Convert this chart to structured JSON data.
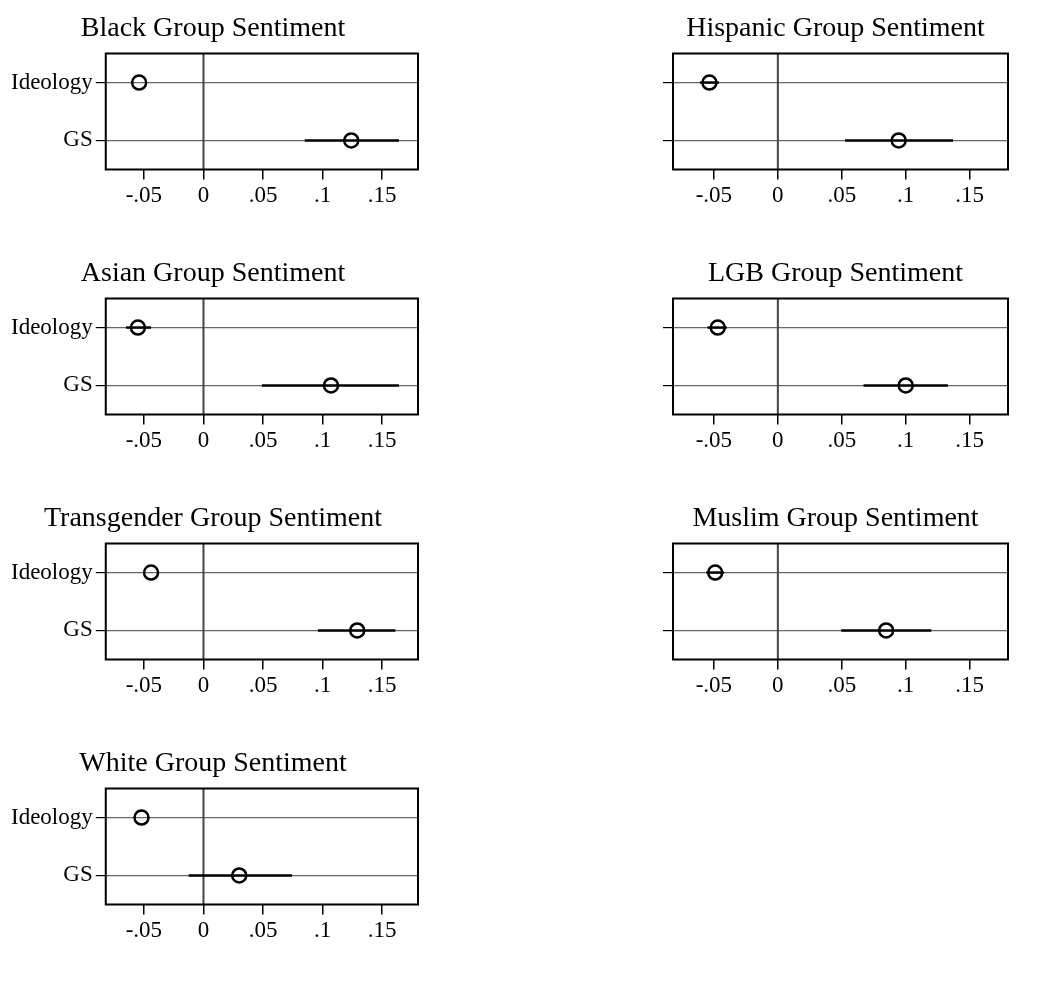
{
  "chart_data": [
    {
      "type": "scatter",
      "title": "Black Group Sentiment",
      "orientation": "horizontal",
      "categories": [
        "Ideology",
        "GS"
      ],
      "values": [
        -0.054,
        0.124
      ],
      "errors": [
        null,
        [
          0.085,
          0.164
        ]
      ],
      "color": "#000000",
      "marker": "circle",
      "xlim": [
        -0.082,
        0.18
      ],
      "xticks": [
        {
          "value": -0.05,
          "label": "-.05"
        },
        {
          "value": 0,
          "label": "0"
        },
        {
          "value": 0.05,
          "label": ".05"
        },
        {
          "value": 0.1,
          "label": ".1"
        },
        {
          "value": 0.15,
          "label": ".15"
        }
      ],
      "grid": "y",
      "ref_lines": [
        {
          "axis": "x",
          "value": 0,
          "color": "#444444"
        }
      ]
    },
    {
      "type": "scatter",
      "title": "Hispanic Group Sentiment",
      "orientation": "horizontal",
      "categories": [
        null,
        null
      ],
      "values": [
        -0.0535,
        0.0945
      ],
      "errors": [
        [
          -0.061,
          -0.046
        ],
        [
          0.0525,
          0.137
        ]
      ],
      "color": "#000000",
      "marker": "circle",
      "xlim": [
        -0.082,
        0.18
      ],
      "xticks": [
        {
          "value": -0.05,
          "label": "-.05"
        },
        {
          "value": 0,
          "label": "0"
        },
        {
          "value": 0.05,
          "label": ".05"
        },
        {
          "value": 0.1,
          "label": ".1"
        },
        {
          "value": 0.15,
          "label": ".15"
        }
      ],
      "grid": "y",
      "tick_labels": "x",
      "ref_lines": [
        {
          "axis": "x",
          "value": 0,
          "color": "#444444"
        }
      ]
    },
    {
      "type": "scatter",
      "title": "Asian Group Sentiment",
      "orientation": "horizontal",
      "categories": [
        "Ideology",
        "GS"
      ],
      "values": [
        -0.055,
        0.107
      ],
      "errors": [
        [
          -0.065,
          -0.044
        ],
        [
          0.049,
          0.164
        ]
      ],
      "color": "#000000",
      "marker": "circle",
      "xlim": [
        -0.082,
        0.18
      ],
      "xticks": [
        {
          "value": -0.05,
          "label": "-.05"
        },
        {
          "value": 0,
          "label": "0"
        },
        {
          "value": 0.05,
          "label": ".05"
        },
        {
          "value": 0.1,
          "label": ".1"
        },
        {
          "value": 0.15,
          "label": ".15"
        }
      ],
      "grid": "y",
      "ref_lines": [
        {
          "axis": "x",
          "value": 0,
          "color": "#444444"
        }
      ]
    },
    {
      "type": "scatter",
      "title": "LGB Group Sentiment",
      "orientation": "horizontal",
      "categories": [
        null,
        null
      ],
      "values": [
        -0.047,
        0.1
      ],
      "errors": [
        [
          -0.055,
          -0.04
        ],
        [
          0.067,
          0.133
        ]
      ],
      "color": "#000000",
      "marker": "circle",
      "xlim": [
        -0.082,
        0.18
      ],
      "xticks": [
        {
          "value": -0.05,
          "label": "-.05"
        },
        {
          "value": 0,
          "label": "0"
        },
        {
          "value": 0.05,
          "label": ".05"
        },
        {
          "value": 0.1,
          "label": ".1"
        },
        {
          "value": 0.15,
          "label": ".15"
        }
      ],
      "grid": "y",
      "tick_labels": "x",
      "ref_lines": [
        {
          "axis": "x",
          "value": 0,
          "color": "#444444"
        }
      ]
    },
    {
      "type": "scatter",
      "title": "Transgender Group Sentiment",
      "orientation": "horizontal",
      "categories": [
        "Ideology",
        "GS"
      ],
      "values": [
        -0.044,
        0.129
      ],
      "errors": [
        null,
        [
          0.096,
          0.161
        ]
      ],
      "color": "#000000",
      "marker": "circle",
      "xlim": [
        -0.082,
        0.18
      ],
      "xticks": [
        {
          "value": -0.05,
          "label": "-.05"
        },
        {
          "value": 0,
          "label": "0"
        },
        {
          "value": 0.05,
          "label": ".05"
        },
        {
          "value": 0.1,
          "label": ".1"
        },
        {
          "value": 0.15,
          "label": ".15"
        }
      ],
      "grid": "y",
      "ref_lines": [
        {
          "axis": "x",
          "value": 0,
          "color": "#444444"
        }
      ]
    },
    {
      "type": "scatter",
      "title": "Muslim Group Sentiment",
      "orientation": "horizontal",
      "categories": [
        null,
        null
      ],
      "values": [
        -0.049,
        0.0847
      ],
      "errors": [
        [
          -0.056,
          -0.042
        ],
        [
          0.0495,
          0.12
        ]
      ],
      "color": "#000000",
      "marker": "circle",
      "xlim": [
        -0.082,
        0.18
      ],
      "xticks": [
        {
          "value": -0.05,
          "label": "-.05"
        },
        {
          "value": 0,
          "label": "0"
        },
        {
          "value": 0.05,
          "label": ".05"
        },
        {
          "value": 0.1,
          "label": ".1"
        },
        {
          "value": 0.15,
          "label": ".15"
        }
      ],
      "grid": "y",
      "tick_labels": "x",
      "ref_lines": [
        {
          "axis": "x",
          "value": 0,
          "color": "#444444"
        }
      ]
    },
    {
      "type": "scatter",
      "title": "White Group Sentiment",
      "orientation": "horizontal",
      "categories": [
        "Ideology",
        "GS"
      ],
      "values": [
        -0.052,
        0.03
      ],
      "errors": [
        null,
        [
          -0.0124,
          0.0742
        ]
      ],
      "color": "#000000",
      "marker": "circle",
      "xlim": [
        -0.082,
        0.18
      ],
      "xticks": [
        {
          "value": -0.05,
          "label": "-.05"
        },
        {
          "value": 0,
          "label": "0"
        },
        {
          "value": 0.05,
          "label": ".05"
        },
        {
          "value": 0.1,
          "label": ".1"
        },
        {
          "value": 0.15,
          "label": ".15"
        }
      ],
      "grid": "y",
      "ref_lines": [
        {
          "axis": "x",
          "value": 0,
          "color": "#444444"
        }
      ]
    }
  ]
}
